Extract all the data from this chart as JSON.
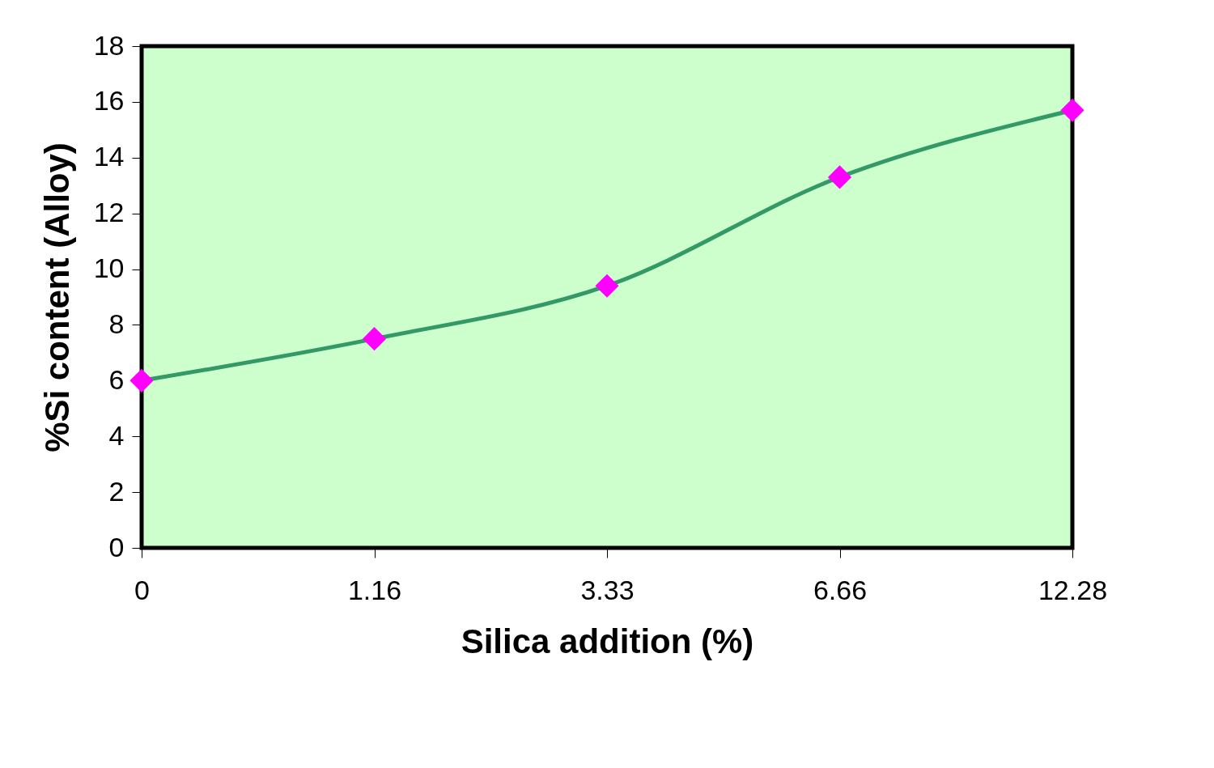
{
  "chart_data": {
    "type": "line",
    "xlabel": "Silica addition (%)",
    "ylabel": "%Si content (Alloy)",
    "categories": [
      "0",
      "1.16",
      "3.33",
      "6.66",
      "12.28"
    ],
    "series": [
      {
        "color": "#339966",
        "colors": [
          "#ff00ff",
          "#ff00ff",
          "#ff00ff",
          "#ff00ff",
          "#ff00ff"
        ],
        "values": [
          6.0,
          7.5,
          9.4,
          13.3,
          15.7
        ]
      }
    ],
    "marker": "diamond",
    "line_style": "solid",
    "ylim": [
      0,
      18
    ],
    "yticks": [
      0,
      2,
      4,
      6,
      8,
      10,
      12,
      14,
      16,
      18
    ],
    "grid": false
  }
}
